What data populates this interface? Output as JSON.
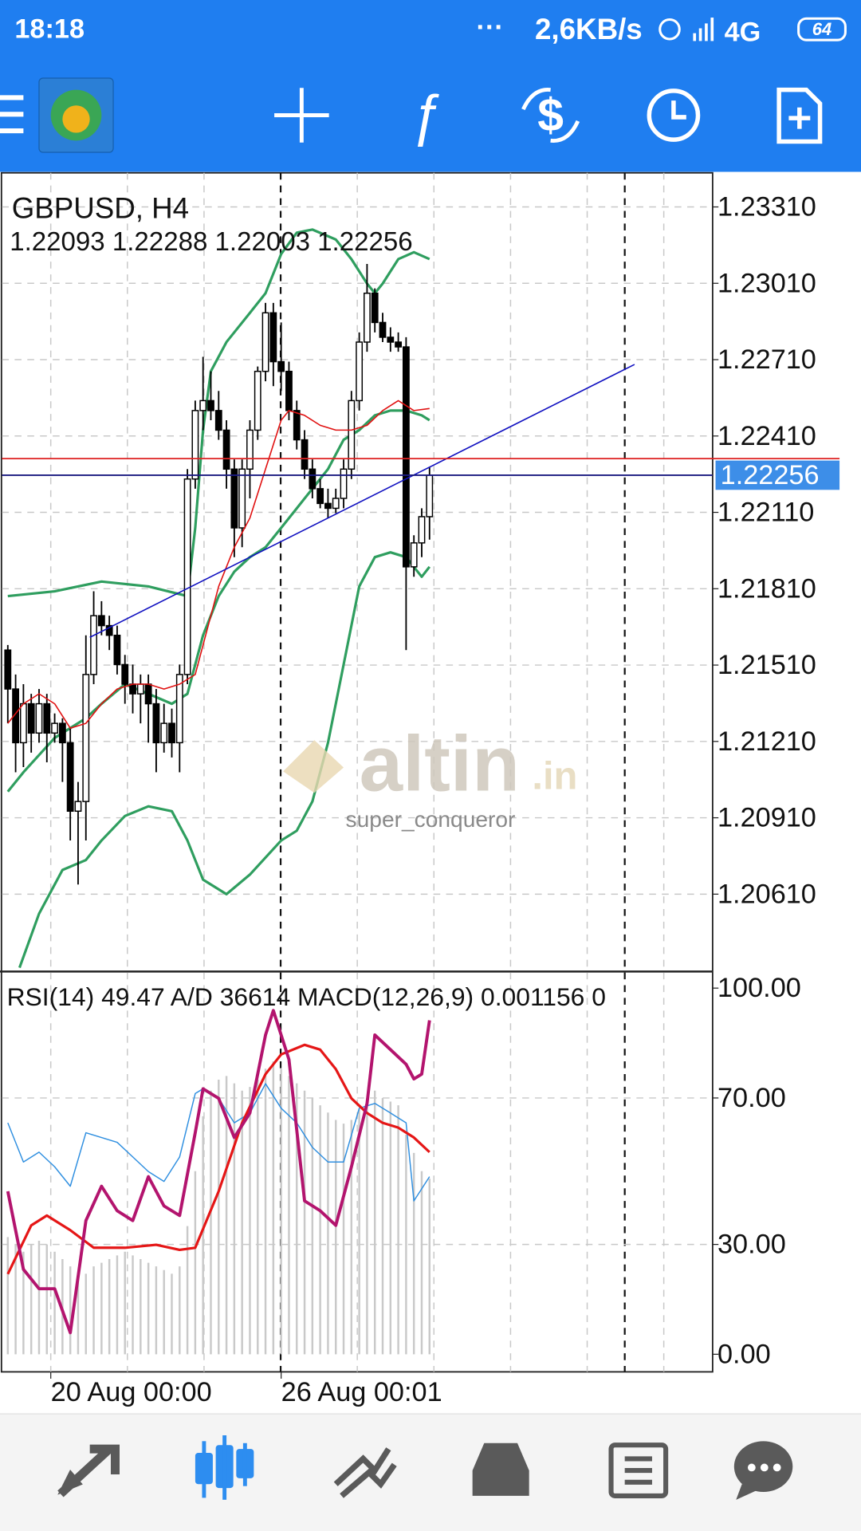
{
  "status_bar": {
    "time": "18:18",
    "speed": "2,6KB/s",
    "network": "4G",
    "battery": "64"
  },
  "watermark": {
    "brand": "altin",
    "suffix": ".in",
    "user": "super_conqueror"
  },
  "chart_data": [
    {
      "type": "candlestick",
      "title": "GBPUSD, H4",
      "subtitle": "1.22093 1.22288 1.22003 1.22256",
      "open": [
        1.21569,
        1.21416,
        1.21205,
        1.21358,
        1.21243,
        1.21358,
        1.21243,
        1.21281,
        1.21205,
        1.20936,
        1.20974,
        1.21473,
        1.21704,
        1.21665,
        1.21627,
        1.21512,
        1.21435,
        1.21397,
        1.21435,
        1.21358,
        1.21205,
        1.21281,
        1.21205,
        1.21473,
        1.22241,
        1.2251,
        1.22549,
        1.2251,
        1.22433,
        1.2228,
        1.22049,
        1.2228,
        1.22433,
        1.22664,
        1.22894,
        1.22702,
        1.22664,
        1.2251,
        1.22395,
        1.2228,
        1.22203,
        1.22145,
        1.22126,
        1.22165,
        1.2228,
        1.22549,
        1.22779,
        1.22971,
        1.22856,
        1.22798,
        1.22779,
        1.2276,
        1.21896,
        1.2199,
        1.22093
      ],
      "high": [
        1.21589,
        1.21473,
        1.21435,
        1.21397,
        1.21416,
        1.21397,
        1.2132,
        1.21301,
        1.21262,
        1.21051,
        1.21627,
        1.218,
        1.21761,
        1.21704,
        1.21665,
        1.2155,
        1.21512,
        1.21473,
        1.21473,
        1.21416,
        1.21358,
        1.21339,
        1.21512,
        1.2228,
        1.22549,
        1.22721,
        1.22664,
        1.22587,
        1.22472,
        1.22318,
        1.22318,
        1.22472,
        1.22683,
        1.22933,
        1.22933,
        1.22856,
        1.22702,
        1.22549,
        1.22433,
        1.22318,
        1.22241,
        1.22203,
        1.22203,
        1.22318,
        1.22587,
        1.22817,
        1.23086,
        1.2299,
        1.22894,
        1.22837,
        1.22817,
        1.22798,
        1.2202,
        1.22126,
        1.22288
      ],
      "low": [
        1.21281,
        1.21089,
        1.21109,
        1.21166,
        1.21205,
        1.21128,
        1.21205,
        1.21051,
        1.20821,
        1.20648,
        1.20821,
        1.21435,
        1.21627,
        1.21569,
        1.21473,
        1.21358,
        1.2132,
        1.21281,
        1.21205,
        1.21089,
        1.21166,
        1.21147,
        1.21089,
        1.21435,
        1.22203,
        1.22433,
        1.22472,
        1.22395,
        1.22203,
        1.21934,
        1.21973,
        1.22165,
        1.22395,
        1.22625,
        1.22606,
        1.22587,
        1.22472,
        1.22357,
        1.22241,
        1.22165,
        1.22126,
        1.22088,
        1.22107,
        1.22126,
        1.22241,
        1.2251,
        1.22741,
        1.22817,
        1.22779,
        1.22741,
        1.22741,
        1.21569,
        1.21857,
        1.21934,
        1.22003
      ],
      "close": [
        1.21416,
        1.21205,
        1.21358,
        1.21243,
        1.21358,
        1.21243,
        1.21281,
        1.21205,
        1.20936,
        1.20974,
        1.21473,
        1.21704,
        1.21665,
        1.21627,
        1.21512,
        1.21435,
        1.21397,
        1.21435,
        1.21358,
        1.21205,
        1.21281,
        1.21205,
        1.21473,
        1.22241,
        1.2251,
        1.22549,
        1.2251,
        1.22433,
        1.2228,
        1.22049,
        1.2228,
        1.22433,
        1.22664,
        1.22894,
        1.22702,
        1.22664,
        1.2251,
        1.22395,
        1.2228,
        1.22203,
        1.22145,
        1.22126,
        1.22165,
        1.2228,
        1.22549,
        1.22779,
        1.22971,
        1.22856,
        1.22798,
        1.22779,
        1.2276,
        1.21896,
        1.2199,
        1.22093,
        1.22256
      ],
      "up_color": "#ffffff",
      "down_color": "#000000",
      "series": [
        {
          "color": "#2f9e5f",
          "x": [
            0,
            6,
            12,
            18,
            23,
            24,
            25,
            26,
            28,
            31,
            33,
            35,
            37,
            39,
            42,
            44,
            46,
            47,
            48,
            50,
            52,
            54
          ],
          "values": [
            1.21781,
            1.218,
            1.21838,
            1.21819,
            1.21781,
            1.22049,
            1.22433,
            1.22664,
            1.22779,
            1.22894,
            1.22971,
            1.23125,
            1.23209,
            1.23221,
            1.23182,
            1.23105,
            1.23009,
            1.22971,
            1.23009,
            1.23105,
            1.23132,
            1.23105
          ]
        },
        {
          "color": "#2f9e5f",
          "x": [
            0,
            2,
            6,
            10,
            12,
            15,
            18,
            21,
            23,
            24,
            25,
            27,
            29,
            31,
            33,
            35,
            37,
            39,
            41,
            43,
            45,
            47,
            49,
            51,
            53,
            54
          ],
          "values": [
            1.21013,
            1.21089,
            1.21224,
            1.21301,
            1.21358,
            1.21435,
            1.21397,
            1.21358,
            1.21397,
            1.21512,
            1.21627,
            1.21781,
            1.21877,
            1.21934,
            1.21973,
            1.22049,
            1.22126,
            1.22203,
            1.2228,
            1.22395,
            1.22433,
            1.22491,
            1.2251,
            1.2251,
            1.22491,
            1.22472
          ]
        },
        {
          "color": "#2f9e5f",
          "x": [
            1.5,
            4,
            7,
            10,
            12,
            15,
            18,
            21,
            23,
            25,
            28,
            31,
            35,
            37,
            39,
            41,
            43,
            45,
            47,
            49,
            51,
            53,
            54
          ],
          "values": [
            1.20321,
            1.20533,
            1.20705,
            1.20744,
            1.20821,
            1.20917,
            1.20955,
            1.20936,
            1.20821,
            1.20667,
            1.2061,
            1.20687,
            1.20821,
            1.20859,
            1.20974,
            1.21205,
            1.21512,
            1.21819,
            1.21934,
            1.21953,
            1.21934,
            1.21857,
            1.21896
          ]
        },
        {
          "color": "#e01010",
          "x": [
            0,
            2,
            4,
            6,
            8,
            10,
            12,
            14,
            16,
            18,
            20,
            22,
            24,
            25,
            27,
            29,
            31,
            33,
            35,
            36,
            38,
            40,
            42,
            44,
            46,
            48,
            50,
            52,
            54
          ],
          "values": [
            1.21281,
            1.21358,
            1.21397,
            1.21358,
            1.21262,
            1.21281,
            1.21358,
            1.21416,
            1.21435,
            1.21435,
            1.21416,
            1.21435,
            1.21473,
            1.21589,
            1.21819,
            1.21973,
            1.22088,
            1.2228,
            1.22472,
            1.2251,
            1.22491,
            1.22452,
            1.22433,
            1.22433,
            1.22452,
            1.2251,
            1.22549,
            1.2251,
            1.22518
          ]
        }
      ],
      "trendline": {
        "color": "#1010c0",
        "x": [
          10.5,
          80.25
        ],
        "values": [
          1.21619,
          1.22691
        ]
      },
      "bid": 1.22256,
      "bid_color": "#3d8ee8",
      "ylim": [
        1.20306,
        1.23444
      ],
      "yticks": [
        {
          "value": 1.2331,
          "label": "1.23310"
        },
        {
          "value": 1.2301,
          "label": "1.23010"
        },
        {
          "value": 1.2271,
          "label": "1.22710"
        },
        {
          "value": 1.2241,
          "label": "1.22410"
        },
        {
          "value": 1.2211,
          "label": "1.22110"
        },
        {
          "value": 1.2181,
          "label": "1.21810"
        },
        {
          "value": 1.2151,
          "label": "1.21510"
        },
        {
          "value": 1.2121,
          "label": "1.21210"
        },
        {
          "value": 1.2091,
          "label": "1.20910"
        },
        {
          "value": 1.2061,
          "label": "1.20610"
        }
      ],
      "grid": true,
      "x_labels": [
        "20 Aug 00:00",
        "26 Aug 00:01"
      ]
    },
    {
      "type": "line",
      "title": "RSI(14) 49.47 A/D 36614 MACD(12,26,9) 0.001156 0",
      "bars": {
        "color": "#c9c9c9",
        "values": [
          32,
          30,
          28,
          30,
          31,
          30,
          28,
          26,
          24,
          22,
          22,
          24,
          25,
          26,
          27,
          28,
          27,
          26,
          25,
          24,
          23,
          22,
          24,
          35,
          50,
          65,
          72,
          75,
          76,
          74,
          72,
          73,
          75,
          78,
          80,
          78,
          76,
          74,
          72,
          70,
          68,
          66,
          64,
          63,
          64,
          67,
          70,
          72,
          70,
          69,
          68,
          60,
          55,
          50,
          48
        ]
      },
      "series": [
        {
          "color": "#2f8fe0",
          "width": 1.2,
          "x": [
            0,
            2,
            4,
            6,
            8,
            10,
            12,
            14,
            16,
            18,
            20,
            22,
            24,
            25,
            27,
            29,
            31,
            33,
            35,
            37,
            39,
            41,
            43,
            45,
            47,
            49,
            51,
            52,
            54
          ],
          "values": [
            63.2,
            52.5,
            55.2,
            51.2,
            45.9,
            60.5,
            59.2,
            57.9,
            53.9,
            49.9,
            47.2,
            53.9,
            71.2,
            72.5,
            69.9,
            63.2,
            65.9,
            73.9,
            67.2,
            63.2,
            56.5,
            52.5,
            52.5,
            67.2,
            68.5,
            65.9,
            63.2,
            41.9,
            48.5
          ]
        },
        {
          "color": "#e51616",
          "width": 2.6,
          "x": [
            0,
            3,
            5,
            8,
            11,
            15,
            19,
            22,
            24,
            27,
            30,
            33,
            35,
            38,
            40,
            42,
            44,
            46,
            48,
            50,
            52,
            54
          ],
          "values": [
            21.9,
            35.2,
            37.9,
            33.9,
            29.1,
            29.1,
            29.9,
            28.5,
            29.1,
            44.5,
            63.2,
            76.5,
            81.9,
            84.5,
            83.2,
            77.9,
            69.9,
            65.9,
            63.2,
            61.9,
            59.2,
            55.2
          ]
        },
        {
          "color": "#b3146e",
          "width": 3.2,
          "x": [
            0,
            2,
            4,
            6,
            8,
            10,
            12,
            14,
            16,
            18,
            20,
            22,
            24,
            25,
            27,
            29,
            31,
            33,
            34,
            36,
            38,
            40,
            42,
            44,
            46,
            47,
            49,
            51,
            52,
            53,
            54
          ],
          "values": [
            44.5,
            23.2,
            17.9,
            17.9,
            5.9,
            36.5,
            45.9,
            39.2,
            36.5,
            48.5,
            40.5,
            37.9,
            60.5,
            72.5,
            69.9,
            59.2,
            65.9,
            87.2,
            93.9,
            80.5,
            41.9,
            39.2,
            35.2,
            51.2,
            68.5,
            87.2,
            83.2,
            79.2,
            75.2,
            76.5,
            91.2
          ]
        }
      ],
      "ylim": [
        0,
        100
      ],
      "yticks": [
        {
          "value": 100,
          "label": "100.00"
        },
        {
          "value": 70,
          "label": "70.00"
        },
        {
          "value": 30,
          "label": "30.00"
        },
        {
          "value": 0,
          "label": "0.00"
        }
      ],
      "grid": true
    }
  ]
}
